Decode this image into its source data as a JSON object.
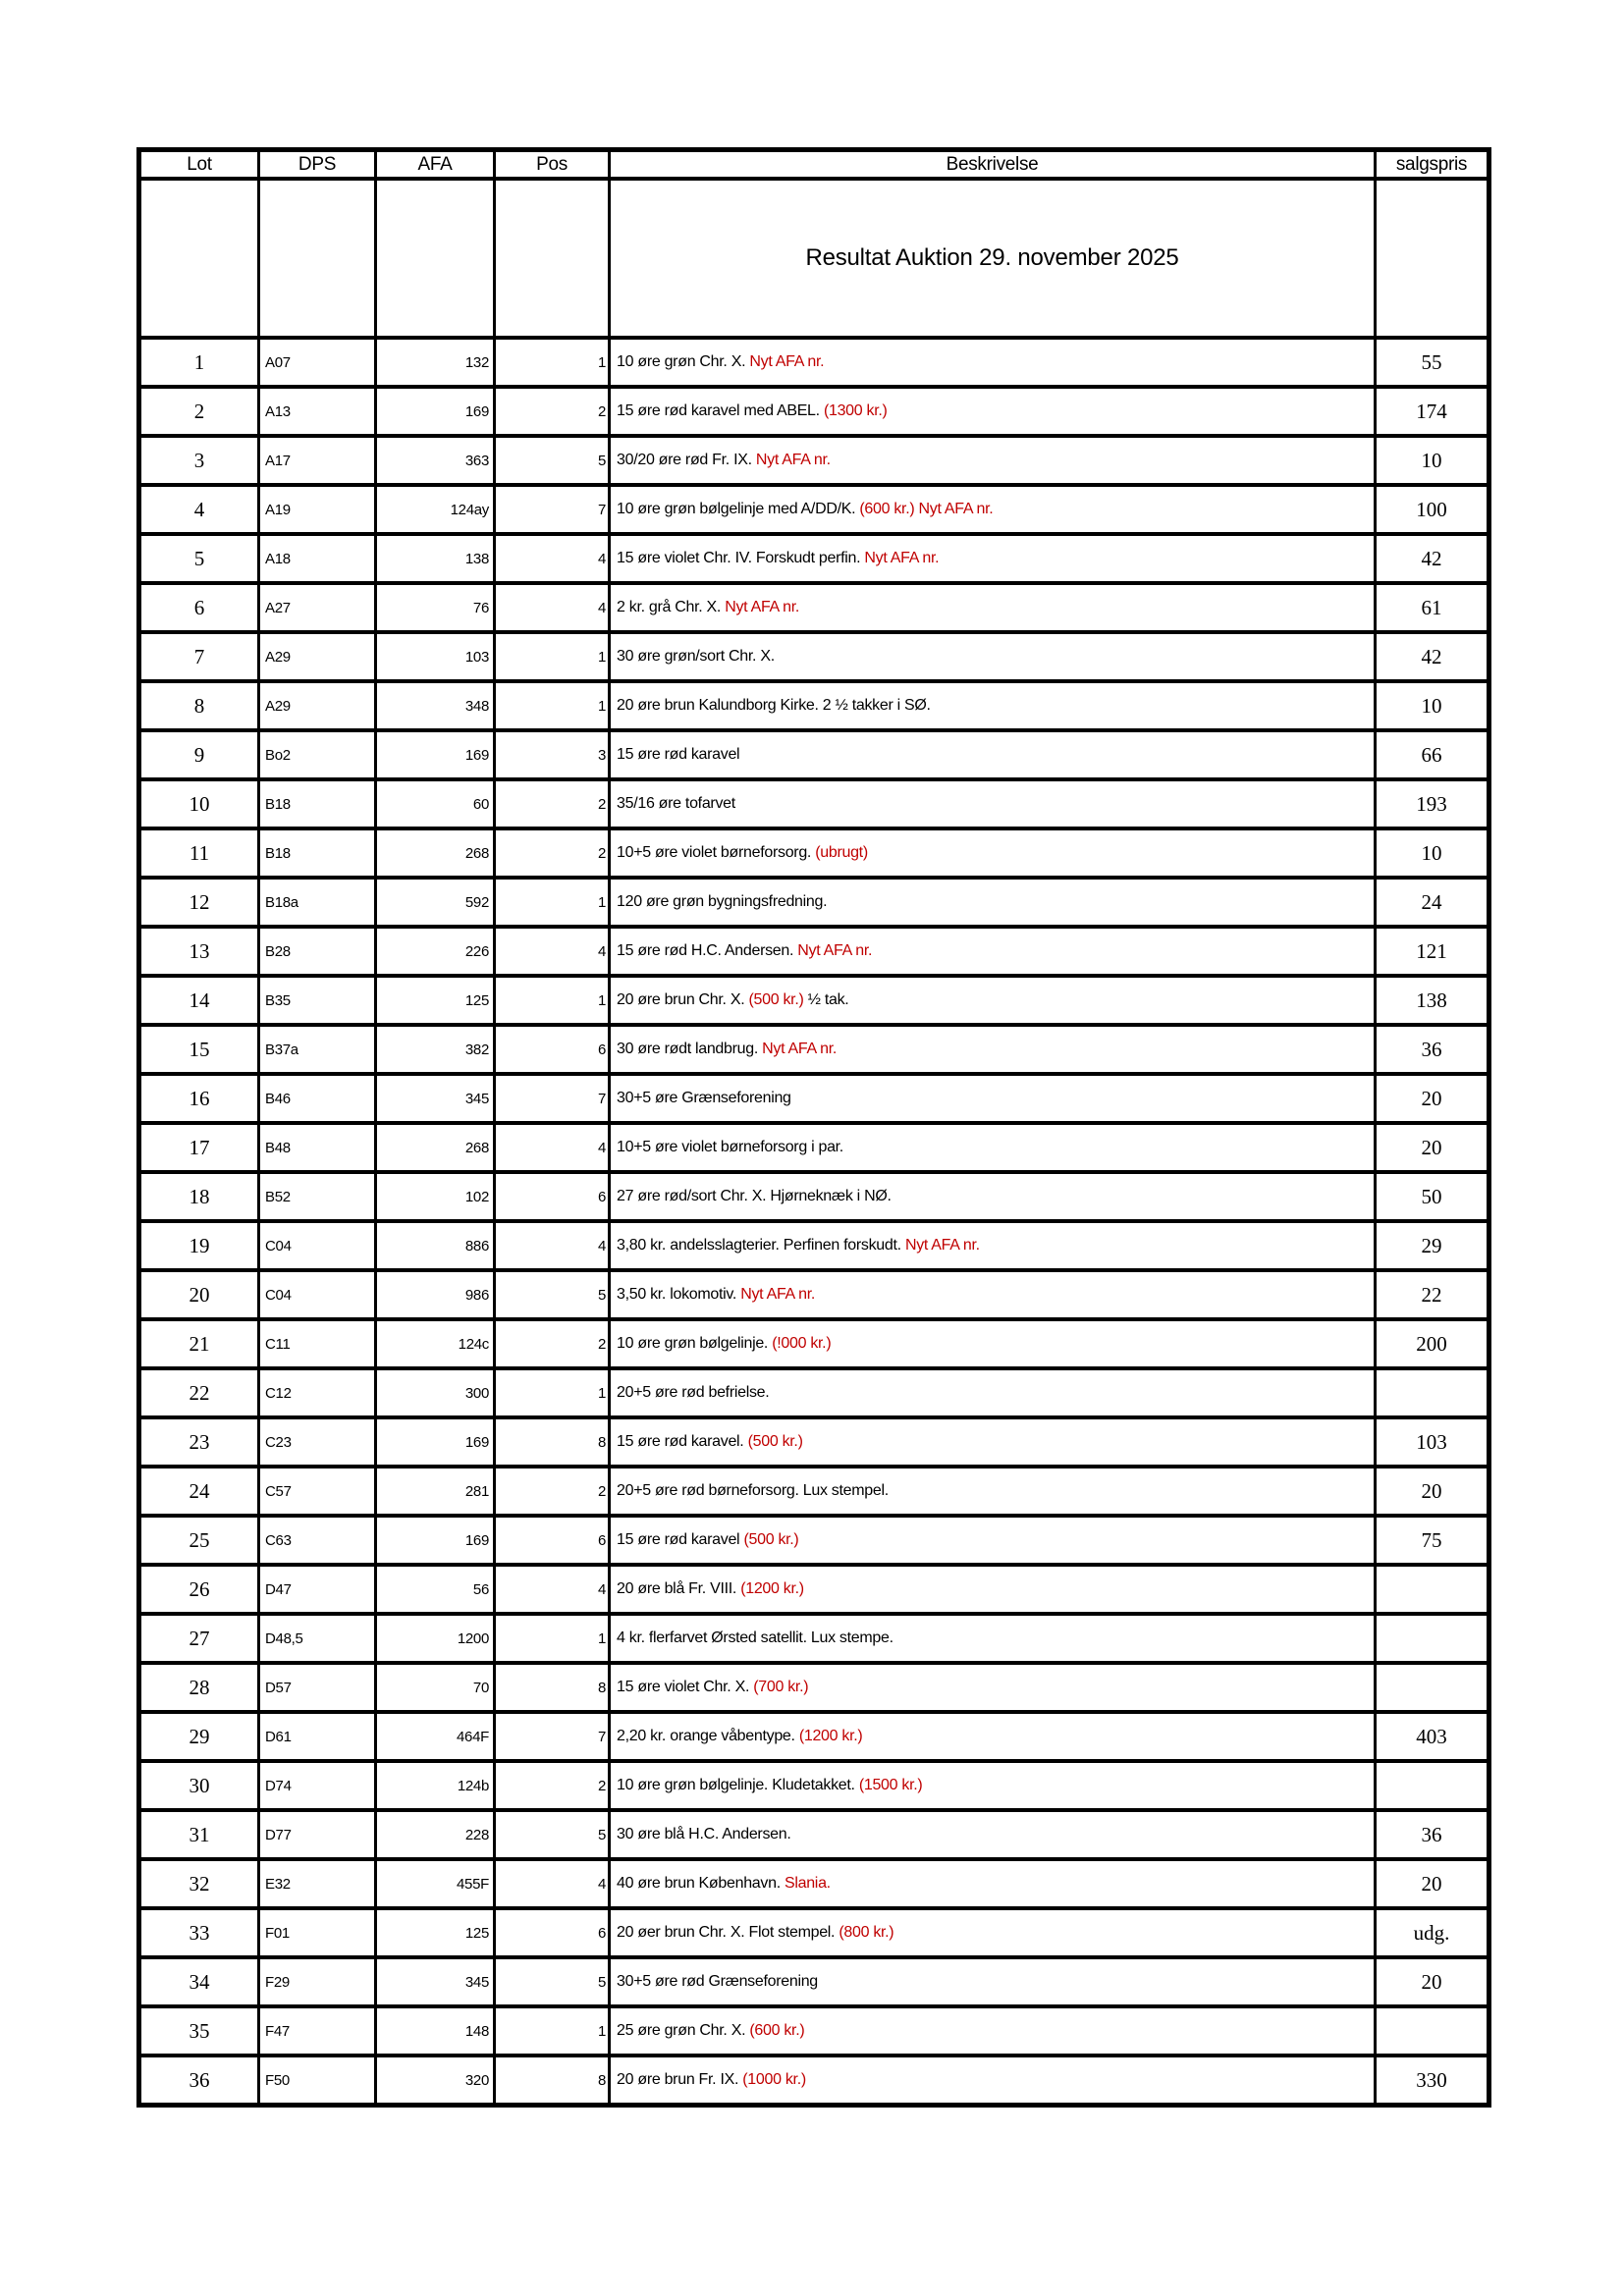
{
  "colors": {
    "accent_red": "#c00000",
    "text": "#000000",
    "border": "#000000",
    "background": "#ffffff"
  },
  "table": {
    "title": "Resultat Auktion 29. november 2025",
    "headers": [
      "Lot",
      "DPS",
      "AFA",
      "Pos",
      "Beskrivelse",
      "salgspris"
    ],
    "rows": [
      {
        "lot": "1",
        "dps": "A07",
        "afa": "132",
        "pos": "1",
        "beskrivelse": [
          {
            "text": "10 øre grøn Chr. X. ",
            "red": false
          },
          {
            "text": "Nyt AFA nr.",
            "red": true
          }
        ],
        "salgspris": "55"
      },
      {
        "lot": "2",
        "dps": "A13",
        "afa": "169",
        "pos": "2",
        "beskrivelse": [
          {
            "text": "15 øre rød karavel med ABEL. ",
            "red": false
          },
          {
            "text": "(1300 kr.)",
            "red": true
          }
        ],
        "salgspris": "174"
      },
      {
        "lot": "3",
        "dps": "A17",
        "afa": "363",
        "pos": "5",
        "beskrivelse": [
          {
            "text": "30/20 øre rød Fr. IX. ",
            "red": false
          },
          {
            "text": "Nyt AFA nr.",
            "red": true
          }
        ],
        "salgspris": "10"
      },
      {
        "lot": "4",
        "dps": "A19",
        "afa": "124ay",
        "pos": "7",
        "beskrivelse": [
          {
            "text": "10 øre grøn bølgelinje med A/DD/K. ",
            "red": false
          },
          {
            "text": "(600 kr.) Nyt AFA nr.",
            "red": true
          }
        ],
        "salgspris": "100"
      },
      {
        "lot": "5",
        "dps": "A18",
        "afa": "138",
        "pos": "4",
        "beskrivelse": [
          {
            "text": "15 øre violet Chr. IV. Forskudt perfin. ",
            "red": false
          },
          {
            "text": "Nyt AFA nr.",
            "red": true
          }
        ],
        "salgspris": "42"
      },
      {
        "lot": "6",
        "dps": "A27",
        "afa": "76",
        "pos": "4",
        "beskrivelse": [
          {
            "text": "2 kr. grå Chr. X. ",
            "red": false
          },
          {
            "text": "Nyt AFA nr.",
            "red": true
          }
        ],
        "salgspris": "61"
      },
      {
        "lot": "7",
        "dps": "A29",
        "afa": "103",
        "pos": "1",
        "beskrivelse": [
          {
            "text": "30 øre grøn/sort Chr. X.",
            "red": false
          }
        ],
        "salgspris": "42"
      },
      {
        "lot": "8",
        "dps": "A29",
        "afa": "348",
        "pos": "1",
        "beskrivelse": [
          {
            "text": "20 øre brun Kalundborg Kirke. 2 ½ takker i SØ.",
            "red": false
          }
        ],
        "salgspris": "10"
      },
      {
        "lot": "9",
        "dps": "Bo2",
        "afa": "169",
        "pos": "3",
        "beskrivelse": [
          {
            "text": "15 øre rød karavel",
            "red": false
          }
        ],
        "salgspris": "66"
      },
      {
        "lot": "10",
        "dps": "B18",
        "afa": "60",
        "pos": "2",
        "beskrivelse": [
          {
            "text": "35/16 øre tofarvet",
            "red": false
          }
        ],
        "salgspris": "193"
      },
      {
        "lot": "11",
        "dps": "B18",
        "afa": "268",
        "pos": "2",
        "beskrivelse": [
          {
            "text": "10+5 øre violet børneforsorg. ",
            "red": false
          },
          {
            "text": "(ubrugt)",
            "red": true
          }
        ],
        "salgspris": "10"
      },
      {
        "lot": "12",
        "dps": "B18a",
        "afa": "592",
        "pos": "1",
        "beskrivelse": [
          {
            "text": "120 øre grøn bygningsfredning.",
            "red": false
          }
        ],
        "salgspris": "24"
      },
      {
        "lot": "13",
        "dps": "B28",
        "afa": "226",
        "pos": "4",
        "beskrivelse": [
          {
            "text": "15 øre rød H.C. Andersen. ",
            "red": false
          },
          {
            "text": "Nyt AFA nr.",
            "red": true
          }
        ],
        "salgspris": "121"
      },
      {
        "lot": "14",
        "dps": "B35",
        "afa": "125",
        "pos": "1",
        "beskrivelse": [
          {
            "text": "20 øre brun Chr. X. ",
            "red": false
          },
          {
            "text": "(500 kr.)",
            "red": true
          },
          {
            "text": " ½ tak.",
            "red": false
          }
        ],
        "salgspris": "138"
      },
      {
        "lot": "15",
        "dps": "B37a",
        "afa": "382",
        "pos": "6",
        "beskrivelse": [
          {
            "text": "30 øre rødt landbrug. ",
            "red": false
          },
          {
            "text": "Nyt AFA nr.",
            "red": true
          }
        ],
        "salgspris": "36"
      },
      {
        "lot": "16",
        "dps": "B46",
        "afa": "345",
        "pos": "7",
        "beskrivelse": [
          {
            "text": "30+5 øre Grænseforening",
            "red": false
          }
        ],
        "salgspris": "20"
      },
      {
        "lot": "17",
        "dps": "B48",
        "afa": "268",
        "pos": "4",
        "beskrivelse": [
          {
            "text": "10+5 øre violet børneforsorg i par.",
            "red": false
          }
        ],
        "salgspris": "20"
      },
      {
        "lot": "18",
        "dps": "B52",
        "afa": "102",
        "pos": "6",
        "beskrivelse": [
          {
            "text": "27 øre rød/sort Chr. X. Hjørneknæk i NØ.",
            "red": false
          }
        ],
        "salgspris": "50"
      },
      {
        "lot": "19",
        "dps": "C04",
        "afa": "886",
        "pos": "4",
        "beskrivelse": [
          {
            "text": "3,80 kr. andelsslagterier. Perfinen forskudt. ",
            "red": false
          },
          {
            "text": "Nyt AFA nr.",
            "red": true
          }
        ],
        "salgspris": "29"
      },
      {
        "lot": "20",
        "dps": "C04",
        "afa": "986",
        "pos": "5",
        "beskrivelse": [
          {
            "text": "3,50 kr. lokomotiv. ",
            "red": false
          },
          {
            "text": "Nyt AFA nr.",
            "red": true
          }
        ],
        "salgspris": "22"
      },
      {
        "lot": "21",
        "dps": "C11",
        "afa": "124c",
        "pos": "2",
        "beskrivelse": [
          {
            "text": "10 øre grøn bølgelinje. ",
            "red": false
          },
          {
            "text": "(!000 kr.)",
            "red": true
          }
        ],
        "salgspris": "200"
      },
      {
        "lot": "22",
        "dps": "C12",
        "afa": "300",
        "pos": "1",
        "beskrivelse": [
          {
            "text": "20+5 øre rød befrielse.",
            "red": false
          }
        ],
        "salgspris": ""
      },
      {
        "lot": "23",
        "dps": "C23",
        "afa": "169",
        "pos": "8",
        "beskrivelse": [
          {
            "text": "15 øre rød karavel. ",
            "red": false
          },
          {
            "text": "(500 kr.)",
            "red": true
          }
        ],
        "salgspris": "103"
      },
      {
        "lot": "24",
        "dps": "C57",
        "afa": "281",
        "pos": "2",
        "beskrivelse": [
          {
            "text": "20+5 øre rød børneforsorg. Lux stempel.",
            "red": false
          }
        ],
        "salgspris": "20"
      },
      {
        "lot": "25",
        "dps": "C63",
        "afa": "169",
        "pos": "6",
        "beskrivelse": [
          {
            "text": "15 øre rød karavel ",
            "red": false
          },
          {
            "text": "(500 kr.)",
            "red": true
          }
        ],
        "salgspris": "75"
      },
      {
        "lot": "26",
        "dps": "D47",
        "afa": "56",
        "pos": "4",
        "beskrivelse": [
          {
            "text": "20 øre blå Fr. VIII. ",
            "red": false
          },
          {
            "text": "(1200 kr.)",
            "red": true
          }
        ],
        "salgspris": ""
      },
      {
        "lot": "27",
        "dps": "D48,5",
        "afa": "1200",
        "pos": "1",
        "beskrivelse": [
          {
            "text": "4 kr. flerfarvet Ørsted satellit. Lux stempe.",
            "red": false
          }
        ],
        "salgspris": ""
      },
      {
        "lot": "28",
        "dps": "D57",
        "afa": "70",
        "pos": "8",
        "beskrivelse": [
          {
            "text": "15 øre violet Chr. X. ",
            "red": false
          },
          {
            "text": "(700 kr.)",
            "red": true
          }
        ],
        "salgspris": ""
      },
      {
        "lot": "29",
        "dps": "D61",
        "afa": "464F",
        "pos": "7",
        "beskrivelse": [
          {
            "text": "2,20 kr. orange våbentype. ",
            "red": false
          },
          {
            "text": "(1200 kr.)",
            "red": true
          }
        ],
        "salgspris": "403"
      },
      {
        "lot": "30",
        "dps": "D74",
        "afa": "124b",
        "pos": "2",
        "beskrivelse": [
          {
            "text": "10 øre grøn bølgelinje. Kludetakket. ",
            "red": false
          },
          {
            "text": "(1500 kr.)",
            "red": true
          }
        ],
        "salgspris": ""
      },
      {
        "lot": "31",
        "dps": "D77",
        "afa": "228",
        "pos": "5",
        "beskrivelse": [
          {
            "text": "30 øre blå H.C. Andersen.",
            "red": false
          }
        ],
        "salgspris": "36"
      },
      {
        "lot": "32",
        "dps": "E32",
        "afa": "455F",
        "pos": "4",
        "beskrivelse": [
          {
            "text": "40 øre brun København. ",
            "red": false
          },
          {
            "text": "Slania.",
            "red": true
          }
        ],
        "salgspris": "20"
      },
      {
        "lot": "33",
        "dps": "F01",
        "afa": "125",
        "pos": "6",
        "beskrivelse": [
          {
            "text": "20 øer brun Chr. X. Flot stempel. ",
            "red": false
          },
          {
            "text": "(800 kr.)",
            "red": true
          }
        ],
        "salgspris": "udg."
      },
      {
        "lot": "34",
        "dps": "F29",
        "afa": "345",
        "pos": "5",
        "beskrivelse": [
          {
            "text": "30+5 øre rød Grænseforening",
            "red": false
          }
        ],
        "salgspris": "20"
      },
      {
        "lot": "35",
        "dps": "F47",
        "afa": "148",
        "pos": "1",
        "beskrivelse": [
          {
            "text": "25 øre grøn Chr. X. ",
            "red": false
          },
          {
            "text": "(600 kr.)",
            "red": true
          }
        ],
        "salgspris": ""
      },
      {
        "lot": "36",
        "dps": "F50",
        "afa": "320",
        "pos": "8",
        "beskrivelse": [
          {
            "text": "20 øre brun Fr. IX. ",
            "red": false
          },
          {
            "text": "(1000 kr.)",
            "red": true
          }
        ],
        "salgspris": "330"
      }
    ]
  }
}
